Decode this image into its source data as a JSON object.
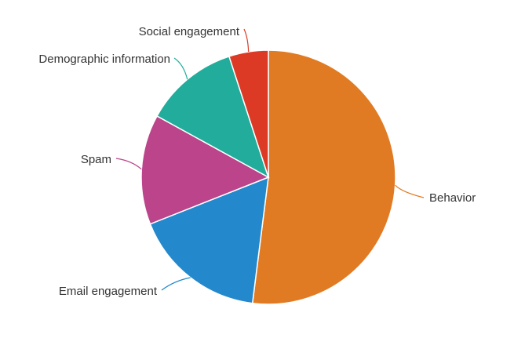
{
  "chart_data": {
    "type": "pie",
    "title": "",
    "slices": [
      {
        "label": "Behavior",
        "value": 52,
        "color": "#e07b24"
      },
      {
        "label": "Email engagement",
        "value": 17,
        "color": "#2488cc"
      },
      {
        "label": "Spam",
        "value": 14,
        "color": "#bb448a"
      },
      {
        "label": "Demographic information",
        "value": 12,
        "color": "#22ac9b"
      },
      {
        "label": "Social engagement",
        "value": 5,
        "color": "#dd3a26"
      }
    ],
    "start_angle_deg": 0,
    "direction": "clockwise",
    "legend": "none",
    "data_labels": "outside-with-leader-lines"
  }
}
